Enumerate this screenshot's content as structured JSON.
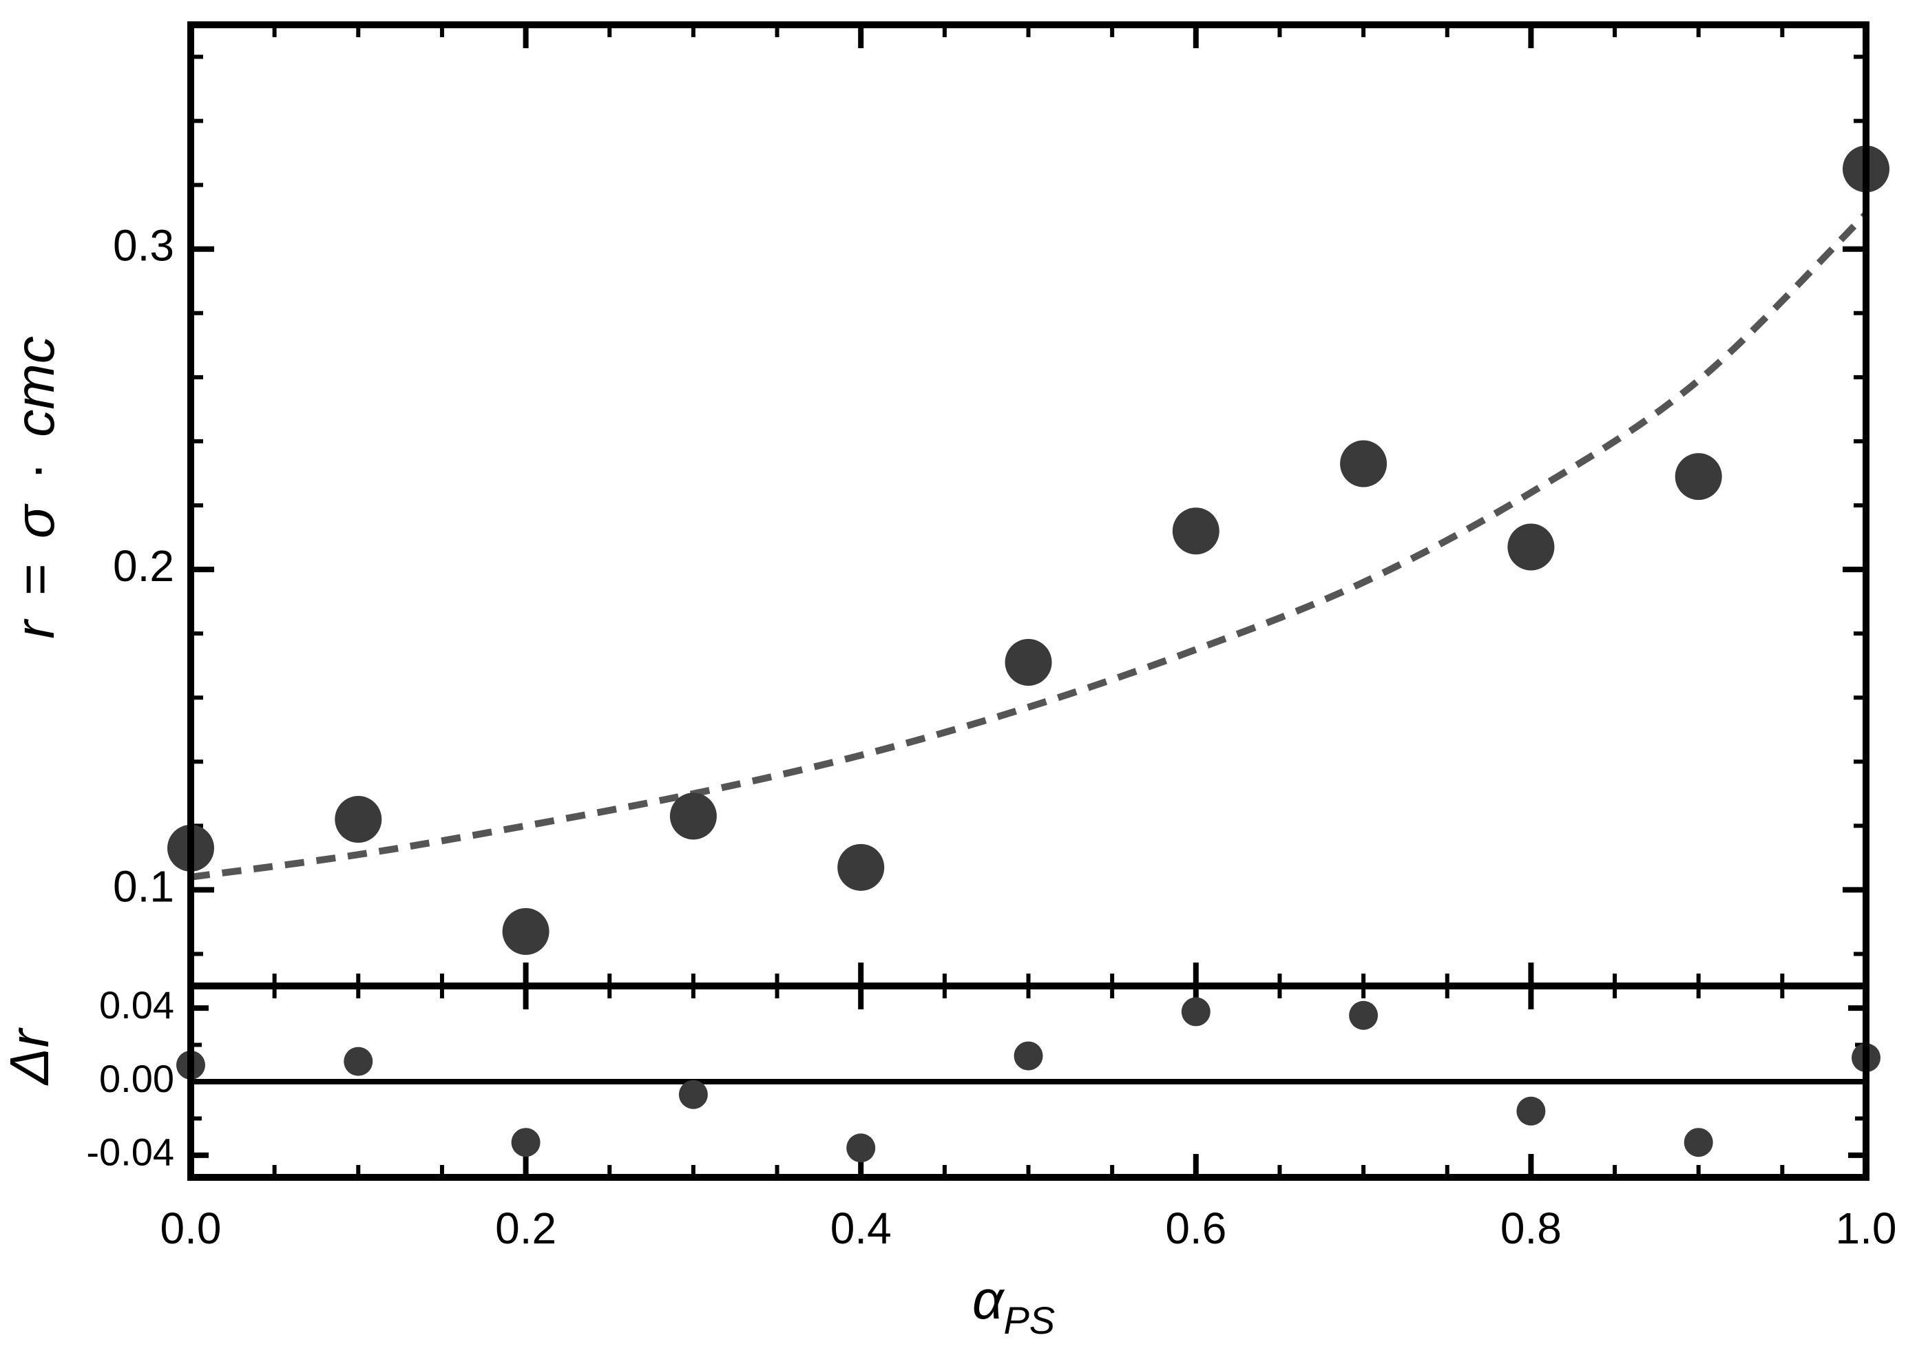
{
  "chart_data": [
    {
      "type": "scatter",
      "panel": "main",
      "title": "",
      "xlabel": "",
      "ylabel": "r = σ · cmc",
      "ylabel_parts": {
        "r": "r",
        "eq": "=",
        "sigma": "σ",
        "dot": "·",
        "cmc": "cmc"
      },
      "xlim": [
        0.0,
        1.0
      ],
      "ylim": [
        0.07,
        0.37
      ],
      "yticks": [
        0.1,
        0.2,
        0.3
      ],
      "ytick_labels": [
        "0.1",
        "0.2",
        "0.3"
      ],
      "grid": false,
      "series": [
        {
          "name": "data",
          "kind": "points",
          "color": "#3a3a3a",
          "x": [
            0.0,
            0.1,
            0.2,
            0.3,
            0.4,
            0.5,
            0.6,
            0.7,
            0.8,
            0.9,
            1.0
          ],
          "y": [
            0.113,
            0.122,
            0.087,
            0.123,
            0.107,
            0.171,
            0.212,
            0.233,
            0.207,
            0.229,
            0.325
          ]
        },
        {
          "name": "fit",
          "kind": "dashed-curve",
          "color": "#555555",
          "x": [
            0.0,
            0.1,
            0.2,
            0.3,
            0.4,
            0.5,
            0.6,
            0.7,
            0.8,
            0.9,
            1.0
          ],
          "y": [
            0.104,
            0.111,
            0.12,
            0.13,
            0.142,
            0.157,
            0.175,
            0.196,
            0.224,
            0.259,
            0.311
          ]
        }
      ]
    },
    {
      "type": "scatter",
      "panel": "residuals",
      "title": "",
      "xlabel": "α",
      "xlabel_sub": "PS",
      "ylabel": "Δr",
      "xlim": [
        0.0,
        1.0
      ],
      "ylim": [
        -0.052,
        0.052
      ],
      "xticks": [
        0.0,
        0.2,
        0.4,
        0.6,
        0.8,
        1.0
      ],
      "xtick_labels": [
        "0.0",
        "0.2",
        "0.4",
        "0.6",
        "0.8",
        "1.0"
      ],
      "yticks": [
        0.04,
        0.0,
        -0.04
      ],
      "ytick_labels": [
        "0.04",
        "0.00",
        "-0.04"
      ],
      "zero_line": true,
      "grid": false,
      "series": [
        {
          "name": "residuals",
          "kind": "points",
          "color": "#3a3a3a",
          "x": [
            0.0,
            0.1,
            0.2,
            0.3,
            0.4,
            0.5,
            0.6,
            0.7,
            0.8,
            0.9,
            1.0
          ],
          "y": [
            0.009,
            0.011,
            -0.033,
            -0.007,
            -0.036,
            0.014,
            0.038,
            0.036,
            -0.016,
            -0.033,
            0.013
          ]
        }
      ]
    }
  ]
}
